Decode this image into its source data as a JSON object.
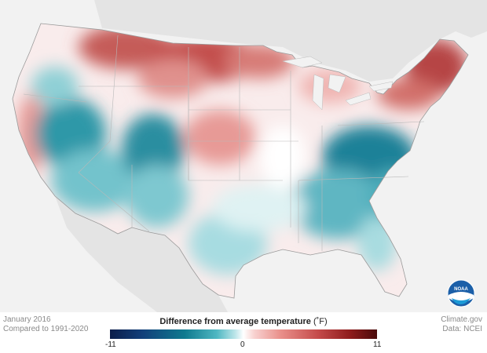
{
  "legend": {
    "title": "Difference from average temperature",
    "unit": "(˚F)",
    "min_label": "-11",
    "mid_label": "0",
    "max_label": "11",
    "colors": [
      "#0b1d4a",
      "#0f7a8f",
      "#ffffff",
      "#c44a4a",
      "#4a0b0b"
    ]
  },
  "info": {
    "date": "January 2016",
    "baseline": "Compared to 1991-2020"
  },
  "credits": {
    "site": "Climate.gov",
    "source": "Data: NCEI"
  },
  "logo": {
    "text": "NOAA"
  }
}
